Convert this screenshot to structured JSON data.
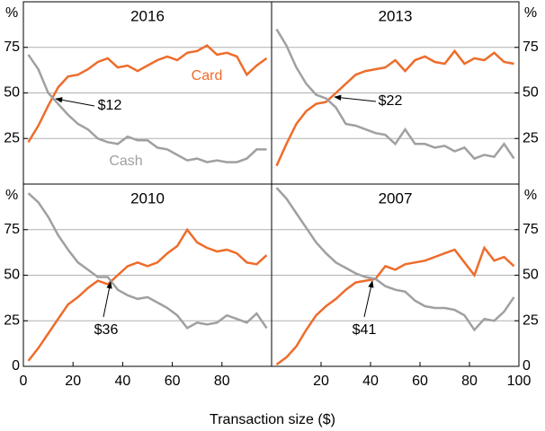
{
  "x_label": "Transaction size ($)",
  "chart_data": [
    {
      "type": "line",
      "title": "2016",
      "y_unit": "%",
      "y_axis": "left",
      "xlim": [
        0,
        100
      ],
      "ylim": [
        0,
        100
      ],
      "yticks": [
        25,
        50,
        75
      ],
      "grid": true,
      "x": [
        2,
        6,
        10,
        14,
        18,
        22,
        26,
        30,
        34,
        38,
        42,
        46,
        50,
        54,
        58,
        62,
        66,
        70,
        74,
        78,
        82,
        86,
        90,
        94,
        98
      ],
      "series": [
        {
          "name": "Card",
          "color": "#ee6c2b",
          "values": [
            23,
            32,
            43,
            53,
            59,
            60,
            63,
            67,
            69,
            64,
            65,
            62,
            65,
            68,
            70,
            68,
            72,
            73,
            76,
            71,
            72,
            70,
            60,
            65,
            69
          ]
        },
        {
          "name": "Cash",
          "color": "#a0a0a0",
          "values": [
            71,
            63,
            50,
            44,
            38,
            33,
            30,
            25,
            23,
            22,
            26,
            24,
            24,
            20,
            19,
            16,
            13,
            14,
            12,
            13,
            12,
            12,
            14,
            19,
            19
          ]
        }
      ],
      "annotation": "$12"
    },
    {
      "type": "line",
      "title": "2013",
      "y_unit": "%",
      "y_axis": "right",
      "xlim": [
        0,
        100
      ],
      "ylim": [
        0,
        100
      ],
      "yticks": [
        25,
        50,
        75
      ],
      "grid": true,
      "x": [
        2,
        6,
        10,
        14,
        18,
        22,
        26,
        30,
        34,
        38,
        42,
        46,
        50,
        54,
        58,
        62,
        66,
        70,
        74,
        78,
        82,
        86,
        90,
        94,
        98
      ],
      "series": [
        {
          "color": "#ee6c2b",
          "values": [
            10,
            22,
            33,
            40,
            44,
            45,
            50,
            55,
            60,
            62,
            63,
            64,
            68,
            62,
            68,
            70,
            67,
            66,
            73,
            66,
            69,
            68,
            72,
            67,
            66
          ]
        },
        {
          "color": "#a0a0a0",
          "values": [
            85,
            76,
            64,
            55,
            49,
            47,
            42,
            33,
            32,
            30,
            28,
            27,
            22,
            30,
            22,
            22,
            20,
            21,
            18,
            20,
            14,
            16,
            15,
            22,
            14
          ]
        }
      ],
      "annotation": "$22"
    },
    {
      "type": "line",
      "title": "2010",
      "y_unit": "%",
      "y_axis": "left",
      "xlim": [
        0,
        100
      ],
      "ylim": [
        0,
        100
      ],
      "yticks": [
        0,
        25,
        50,
        75
      ],
      "xticks": [
        0,
        20,
        40,
        60,
        80
      ],
      "grid": true,
      "x": [
        2,
        6,
        10,
        14,
        18,
        22,
        26,
        30,
        34,
        38,
        42,
        46,
        50,
        54,
        58,
        62,
        66,
        70,
        74,
        78,
        82,
        86,
        90,
        94,
        98
      ],
      "series": [
        {
          "color": "#ee6c2b",
          "values": [
            3,
            10,
            18,
            26,
            34,
            38,
            43,
            47,
            45,
            50,
            55,
            57,
            55,
            57,
            62,
            66,
            75,
            68,
            65,
            63,
            64,
            62,
            57,
            56,
            61
          ]
        },
        {
          "color": "#a0a0a0",
          "values": [
            95,
            90,
            82,
            72,
            64,
            57,
            53,
            49,
            49,
            42,
            39,
            37,
            38,
            35,
            32,
            28,
            21,
            24,
            23,
            24,
            28,
            26,
            24,
            29,
            21
          ]
        }
      ],
      "annotation": "$36"
    },
    {
      "type": "line",
      "title": "2007",
      "y_unit": "%",
      "y_axis": "right",
      "xlim": [
        0,
        100
      ],
      "ylim": [
        0,
        100
      ],
      "yticks": [
        0,
        25,
        50,
        75
      ],
      "xticks": [
        20,
        40,
        60,
        80,
        100
      ],
      "grid": true,
      "x": [
        2,
        6,
        10,
        14,
        18,
        22,
        26,
        30,
        34,
        38,
        42,
        46,
        50,
        54,
        58,
        62,
        66,
        70,
        74,
        78,
        82,
        86,
        90,
        94,
        98
      ],
      "series": [
        {
          "color": "#ee6c2b",
          "values": [
            1,
            5,
            11,
            20,
            28,
            33,
            37,
            42,
            46,
            47,
            48,
            55,
            53,
            56,
            57,
            58,
            60,
            62,
            64,
            57,
            50,
            65,
            58,
            60,
            55
          ]
        },
        {
          "color": "#a0a0a0",
          "values": [
            98,
            92,
            84,
            76,
            68,
            62,
            57,
            54,
            51,
            49,
            48,
            44,
            42,
            41,
            36,
            33,
            32,
            32,
            31,
            28,
            20,
            26,
            25,
            30,
            38
          ]
        }
      ],
      "annotation": "$41"
    }
  ]
}
